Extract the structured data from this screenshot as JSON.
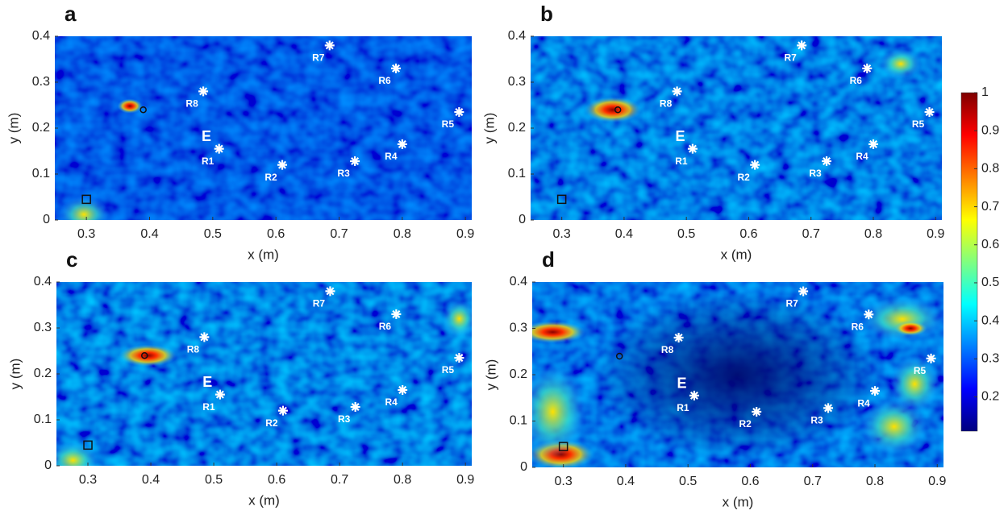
{
  "chart_data": [
    {
      "type": "heatmap",
      "title": "a",
      "x_label": "x (m)",
      "y_label": "y (m)",
      "xlim": [
        0.25,
        0.91
      ],
      "ylim": [
        0,
        0.4
      ],
      "xticks": [
        0.3,
        0.4,
        0.5,
        0.6,
        0.7,
        0.8,
        0.9
      ],
      "yticks": [
        0,
        0.1,
        0.2,
        0.3,
        0.4
      ],
      "points": {
        "labels": [
          "R1",
          "R2",
          "R3",
          "R4",
          "R5",
          "R6",
          "R7",
          "R8"
        ],
        "x": [
          0.51,
          0.61,
          0.725,
          0.8,
          0.89,
          0.79,
          0.685,
          0.485
        ],
        "y": [
          0.155,
          0.12,
          0.128,
          0.165,
          0.235,
          0.33,
          0.38,
          0.28
        ]
      },
      "annotation": {
        "text": "E",
        "x": 0.49,
        "y": 0.18
      },
      "circle": {
        "x": 0.39,
        "y": 0.24
      },
      "square": {
        "x": 0.3,
        "y": 0.045
      }
    },
    {
      "type": "heatmap",
      "title": "b",
      "x_label": "x (m)",
      "y_label": "y (m)",
      "xlim": [
        0.25,
        0.91
      ],
      "ylim": [
        0,
        0.4
      ],
      "xticks": [
        0.3,
        0.4,
        0.5,
        0.6,
        0.7,
        0.8,
        0.9
      ],
      "yticks": [
        0,
        0.1,
        0.2,
        0.3,
        0.4
      ],
      "points": {
        "labels": [
          "R1",
          "R2",
          "R3",
          "R4",
          "R5",
          "R6",
          "R7",
          "R8"
        ],
        "x": [
          0.51,
          0.61,
          0.725,
          0.8,
          0.89,
          0.79,
          0.685,
          0.485
        ],
        "y": [
          0.155,
          0.12,
          0.128,
          0.165,
          0.235,
          0.33,
          0.38,
          0.28
        ]
      },
      "annotation": {
        "text": "E",
        "x": 0.49,
        "y": 0.18
      },
      "circle": {
        "x": 0.39,
        "y": 0.24
      },
      "square": {
        "x": 0.3,
        "y": 0.045
      }
    },
    {
      "type": "heatmap",
      "title": "c",
      "x_label": "x (m)",
      "y_label": "y (m)",
      "xlim": [
        0.25,
        0.91
      ],
      "ylim": [
        0,
        0.4
      ],
      "xticks": [
        0.3,
        0.4,
        0.5,
        0.6,
        0.7,
        0.8,
        0.9
      ],
      "yticks": [
        0,
        0.1,
        0.2,
        0.3,
        0.4
      ],
      "points": {
        "labels": [
          "R1",
          "R2",
          "R3",
          "R4",
          "R5",
          "R6",
          "R7",
          "R8"
        ],
        "x": [
          0.51,
          0.61,
          0.725,
          0.8,
          0.89,
          0.79,
          0.685,
          0.485
        ],
        "y": [
          0.155,
          0.12,
          0.128,
          0.165,
          0.235,
          0.33,
          0.38,
          0.28
        ]
      },
      "annotation": {
        "text": "E",
        "x": 0.49,
        "y": 0.18
      },
      "circle": {
        "x": 0.39,
        "y": 0.24
      },
      "square": {
        "x": 0.3,
        "y": 0.045
      }
    },
    {
      "type": "heatmap",
      "title": "d",
      "x_label": "x (m)",
      "y_label": "y (m)",
      "xlim": [
        0.25,
        0.91
      ],
      "ylim": [
        0,
        0.4
      ],
      "xticks": [
        0.3,
        0.4,
        0.5,
        0.6,
        0.7,
        0.8,
        0.9
      ],
      "yticks": [
        0,
        0.1,
        0.2,
        0.3,
        0.4
      ],
      "points": {
        "labels": [
          "R1",
          "R2",
          "R3",
          "R4",
          "R5",
          "R6",
          "R7",
          "R8"
        ],
        "x": [
          0.51,
          0.61,
          0.725,
          0.8,
          0.89,
          0.79,
          0.685,
          0.485
        ],
        "y": [
          0.155,
          0.12,
          0.128,
          0.165,
          0.235,
          0.33,
          0.38,
          0.28
        ]
      },
      "annotation": {
        "text": "E",
        "x": 0.49,
        "y": 0.18
      },
      "circle": {
        "x": 0.39,
        "y": 0.24
      },
      "square": {
        "x": 0.3,
        "y": 0.045
      }
    }
  ],
  "colorbar": {
    "clim": [
      0.11,
      1
    ],
    "ticks": [
      0.2,
      0.3,
      0.4,
      0.5,
      0.6,
      0.7,
      0.8,
      0.9,
      1
    ]
  }
}
